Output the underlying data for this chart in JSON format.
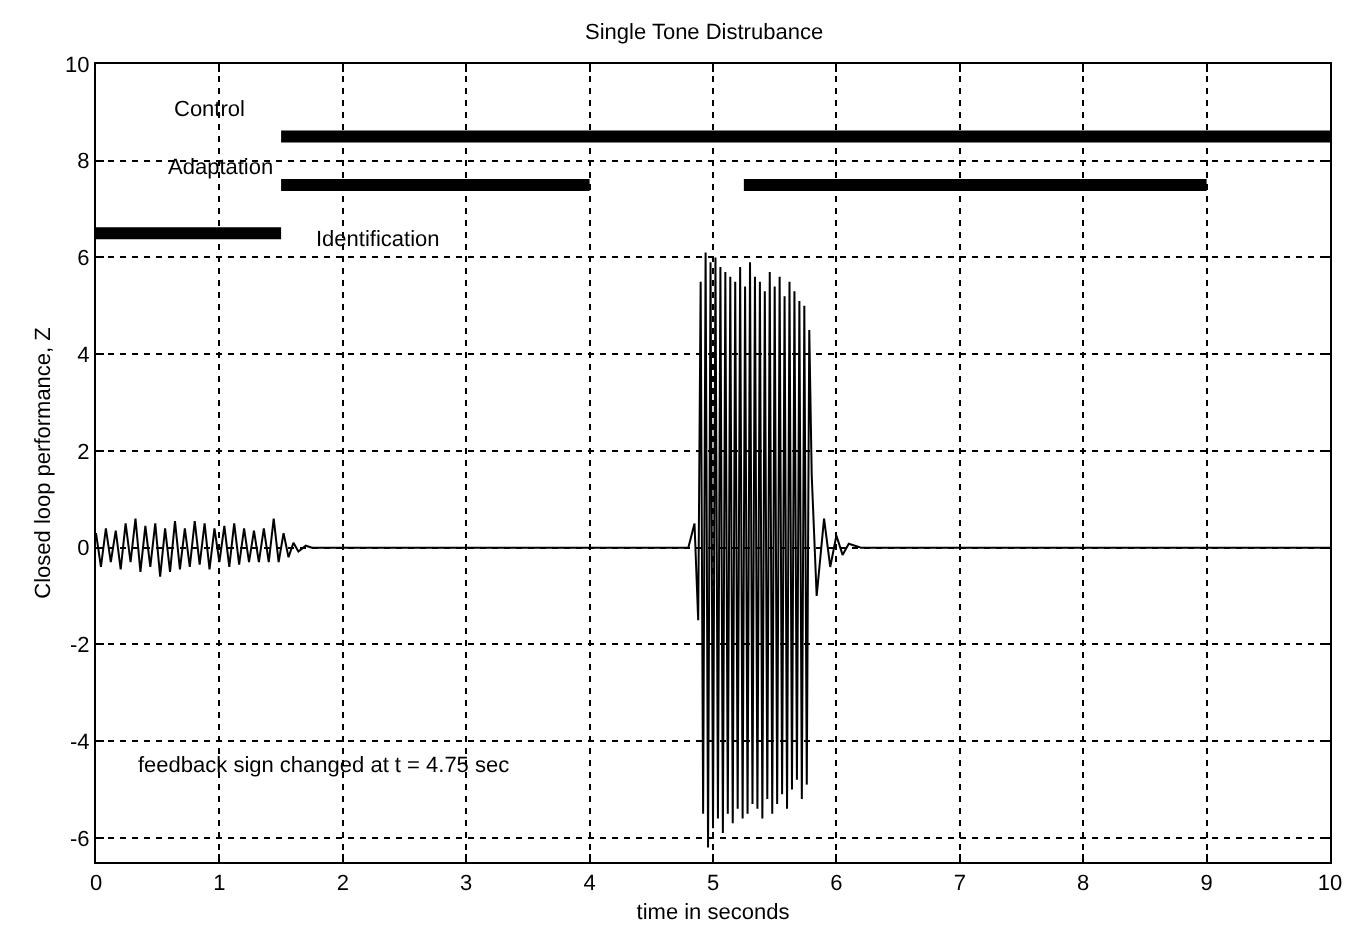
{
  "chart_data": {
    "type": "line",
    "title": "Single Tone Distrubance",
    "xlabel": "time in seconds",
    "ylabel": "Closed loop performance, Z",
    "xlim": [
      0,
      10
    ],
    "xticks": [
      0,
      1,
      2,
      3,
      4,
      5,
      6,
      7,
      8,
      9,
      10
    ],
    "ylim": [
      -6.5,
      10
    ],
    "yticks": [
      -6,
      -4,
      -2,
      0,
      2,
      4,
      6,
      8,
      10
    ],
    "grid": true,
    "line_style": "solid",
    "annotations": [
      "feedback sign changed at t = 4.75 sec"
    ],
    "series": [
      {
        "color": "#000000",
        "x": [
          0,
          0.04,
          0.08,
          0.12,
          0.16,
          0.2,
          0.24,
          0.28,
          0.32,
          0.36,
          0.4,
          0.44,
          0.48,
          0.52,
          0.56,
          0.6,
          0.64,
          0.68,
          0.72,
          0.76,
          0.8,
          0.84,
          0.88,
          0.92,
          0.96,
          1,
          1.04,
          1.08,
          1.12,
          1.16,
          1.2,
          1.24,
          1.28,
          1.32,
          1.36,
          1.4,
          1.44,
          1.48,
          1.52,
          1.56,
          1.6,
          1.64,
          1.7,
          1.75,
          4.8,
          4.85,
          4.88,
          4.9,
          4.92,
          4.94,
          4.96,
          4.98,
          5,
          5.02,
          5.04,
          5.06,
          5.08,
          5.1,
          5.12,
          5.14,
          5.16,
          5.18,
          5.2,
          5.22,
          5.24,
          5.26,
          5.28,
          5.3,
          5.32,
          5.34,
          5.36,
          5.38,
          5.4,
          5.42,
          5.44,
          5.46,
          5.48,
          5.5,
          5.52,
          5.54,
          5.56,
          5.58,
          5.6,
          5.62,
          5.64,
          5.66,
          5.68,
          5.7,
          5.72,
          5.74,
          5.76,
          5.78,
          5.8,
          5.84,
          5.9,
          5.95,
          6,
          6.05,
          6.1,
          6.2,
          10
        ],
        "values": [
          0.3,
          -0.4,
          0.4,
          -0.3,
          0.35,
          -0.45,
          0.5,
          -0.3,
          0.6,
          -0.5,
          0.45,
          -0.4,
          0.5,
          -0.6,
          0.4,
          -0.5,
          0.55,
          -0.45,
          0.4,
          -0.4,
          0.55,
          -0.35,
          0.5,
          -0.45,
          0.4,
          -0.3,
          0.45,
          -0.4,
          0.5,
          -0.35,
          0.4,
          -0.3,
          0.35,
          -0.3,
          0.4,
          -0.3,
          0.6,
          -0.3,
          0.3,
          -0.2,
          0.1,
          -0.08,
          0.04,
          0,
          0,
          0.5,
          -1.5,
          5.5,
          -5.5,
          6.1,
          -6.2,
          5.9,
          -5.8,
          6,
          -5.6,
          5.8,
          -5.9,
          5.7,
          -5.5,
          5.6,
          -5.7,
          5.5,
          -5.4,
          5.8,
          -5.6,
          5.4,
          -5.5,
          5.9,
          -5.3,
          5.6,
          -5.4,
          5.5,
          -5.6,
          5.3,
          -5.2,
          5.7,
          -5.5,
          5.4,
          -5.3,
          5.6,
          -5.1,
          5.2,
          -5.4,
          5.5,
          -5,
          5.3,
          -4.8,
          5.1,
          -5.2,
          5,
          -4.9,
          4.5,
          1.5,
          -1,
          0.6,
          -0.4,
          0.25,
          -0.15,
          0.08,
          0,
          0
        ]
      },
      {
        "name": "Control",
        "color": "#000000",
        "x": [
          1.5,
          10
        ],
        "values": [
          8.5,
          8.5
        ]
      },
      {
        "name": "Adaptation",
        "color": "#000000",
        "x": [
          1.5,
          4,
          4.5,
          5.25,
          9
        ],
        "values": [
          7.5,
          7.5,
          null,
          7.5,
          7.5
        ]
      },
      {
        "name": "Identification",
        "color": "#000000",
        "x": [
          0,
          1.5
        ],
        "values": [
          6.5,
          6.5
        ]
      }
    ]
  }
}
